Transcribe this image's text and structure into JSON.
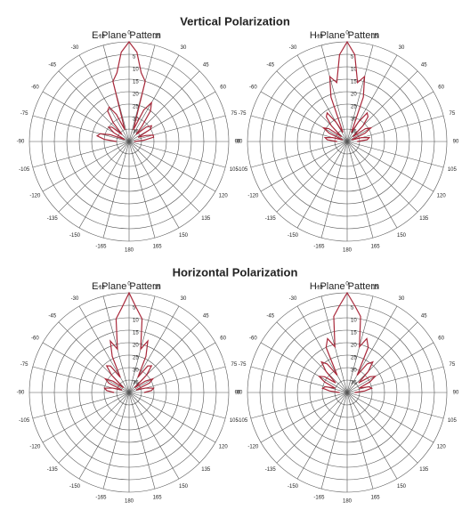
{
  "headings": [
    "Vertical Polarization",
    "Horizontal Polarization"
  ],
  "chart_data": [
    {
      "type": "polar",
      "title": "E-Plane Pattern",
      "color": "#a8283a",
      "rlim": [
        40,
        0
      ],
      "rticks": [
        0,
        5,
        10,
        15,
        20,
        25,
        30,
        35
      ],
      "thetaticks": [
        0,
        15,
        30,
        45,
        60,
        75,
        90,
        105,
        120,
        135,
        150,
        165,
        180,
        -165,
        -150,
        -135,
        -120,
        -105,
        -90,
        -75,
        -60,
        -45,
        -30,
        -15
      ],
      "x": [
        -90,
        -85,
        -80,
        -75,
        -70,
        -65,
        -60,
        -55,
        -50,
        -45,
        -40,
        -35,
        -30,
        -25,
        -20,
        -15,
        -10,
        -5,
        0,
        5,
        10,
        15,
        20,
        25,
        30,
        35,
        40,
        45,
        50,
        55,
        60,
        65,
        70,
        75,
        80,
        85,
        90
      ],
      "values": [
        35,
        30,
        27,
        28,
        32,
        38,
        33,
        30,
        31,
        36,
        30,
        25,
        24,
        28,
        35,
        15,
        12,
        4,
        0,
        4,
        12,
        15,
        35,
        26,
        22,
        25,
        32,
        36,
        31,
        29,
        30,
        36,
        33,
        30,
        30,
        34,
        38
      ]
    },
    {
      "type": "polar",
      "title": "H-Plane Pattern",
      "color": "#a8283a",
      "rlim": [
        40,
        0
      ],
      "rticks": [
        0,
        5,
        10,
        15,
        20,
        25,
        30,
        35
      ],
      "thetaticks": [
        0,
        15,
        30,
        45,
        60,
        75,
        90,
        105,
        120,
        135,
        150,
        165,
        180,
        -165,
        -150,
        -135,
        -120,
        -105,
        -90,
        -75,
        -60,
        -45,
        -30,
        -15
      ],
      "x": [
        -90,
        -85,
        -80,
        -75,
        -70,
        -65,
        -60,
        -55,
        -50,
        -45,
        -40,
        -35,
        -30,
        -25,
        -20,
        -15,
        -10,
        -5,
        0,
        5,
        10,
        15,
        20,
        25,
        30,
        35,
        40,
        45,
        50,
        55,
        60,
        65,
        70,
        75,
        80,
        85,
        90
      ],
      "values": [
        36,
        32,
        31,
        34,
        38,
        32,
        29,
        31,
        37,
        31,
        27,
        26,
        31,
        36,
        21,
        13,
        16,
        5,
        0,
        5,
        16,
        13,
        21,
        36,
        31,
        26,
        27,
        31,
        37,
        31,
        29,
        32,
        38,
        34,
        31,
        32,
        36
      ]
    },
    {
      "type": "polar",
      "title": "E-Plane Pattern",
      "color": "#a8283a",
      "rlim": [
        40,
        0
      ],
      "rticks": [
        0,
        5,
        10,
        15,
        20,
        25,
        30,
        35
      ],
      "thetaticks": [
        0,
        15,
        30,
        45,
        60,
        75,
        90,
        105,
        120,
        135,
        150,
        165,
        180,
        -165,
        -150,
        -135,
        -120,
        -105,
        -90,
        -75,
        -60,
        -45,
        -30,
        -15
      ],
      "x": [
        -90,
        -85,
        -80,
        -75,
        -70,
        -65,
        -60,
        -55,
        -50,
        -45,
        -40,
        -35,
        -30,
        -25,
        -20,
        -15,
        -10,
        -5,
        0,
        5,
        10,
        15,
        20,
        25,
        30,
        35,
        40,
        45,
        50,
        55,
        60,
        65,
        70,
        75,
        80,
        85,
        90
      ],
      "values": [
        34,
        31,
        30,
        33,
        37,
        31,
        29,
        32,
        37,
        30,
        26,
        27,
        33,
        24,
        18,
        22,
        10,
        6,
        0,
        6,
        10,
        22,
        18,
        24,
        33,
        27,
        26,
        30,
        37,
        32,
        29,
        31,
        37,
        33,
        30,
        31,
        34
      ]
    },
    {
      "type": "polar",
      "title": "H-Plane Pattern",
      "color": "#a8283a",
      "rlim": [
        40,
        0
      ],
      "rticks": [
        0,
        5,
        10,
        15,
        20,
        25,
        30,
        35
      ],
      "thetaticks": [
        0,
        15,
        30,
        45,
        60,
        75,
        90,
        105,
        120,
        135,
        150,
        165,
        180,
        -165,
        -150,
        -135,
        -120,
        -105,
        -90,
        -75,
        -60,
        -45,
        -30,
        -15
      ],
      "x": [
        -90,
        -85,
        -80,
        -75,
        -70,
        -65,
        -60,
        -55,
        -50,
        -45,
        -40,
        -35,
        -30,
        -25,
        -20,
        -15,
        -10,
        -5,
        0,
        5,
        10,
        15,
        20,
        25,
        30,
        35,
        40,
        45,
        50,
        55,
        60,
        65,
        70,
        75,
        80,
        85,
        90
      ],
      "values": [
        37,
        33,
        30,
        31,
        35,
        30,
        27,
        29,
        34,
        28,
        24,
        26,
        32,
        20,
        17,
        21,
        9,
        5,
        0,
        5,
        9,
        21,
        17,
        20,
        32,
        26,
        24,
        28,
        34,
        29,
        27,
        30,
        35,
        31,
        30,
        33,
        37
      ]
    }
  ]
}
